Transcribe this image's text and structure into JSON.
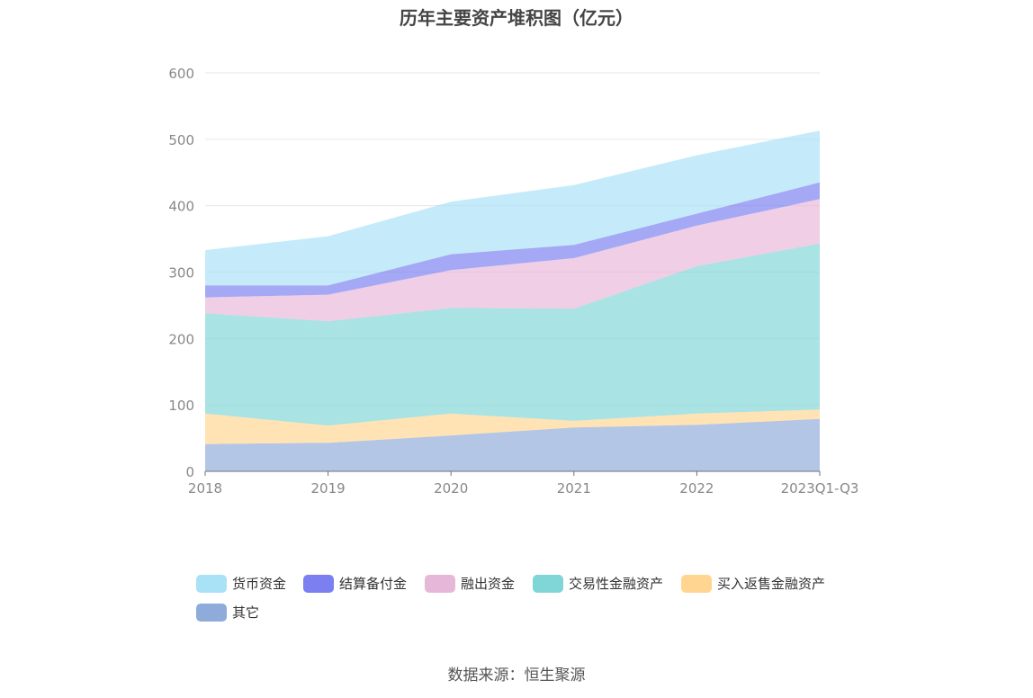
{
  "chart_data": {
    "type": "area",
    "stacked": true,
    "title": "历年主要资产堆积图（亿元）",
    "categories": [
      "2018",
      "2019",
      "2020",
      "2021",
      "2022",
      "2023Q1-Q3"
    ],
    "ylim": [
      0,
      600
    ],
    "yticks": [
      0,
      100,
      200,
      300,
      400,
      500,
      600
    ],
    "grid": true,
    "series": [
      {
        "name": "其它",
        "color": "#8fabd9",
        "values": [
          41,
          43,
          54,
          66,
          70,
          79
        ]
      },
      {
        "name": "买入返售金融资产",
        "color": "#ffd591",
        "values": [
          46,
          26,
          33,
          10,
          17,
          14
        ]
      },
      {
        "name": "交易性金融资产",
        "color": "#80d6d6",
        "values": [
          151,
          157,
          159,
          169,
          222,
          250
        ]
      },
      {
        "name": "融出资金",
        "color": "#e7b7da",
        "values": [
          24,
          40,
          57,
          76,
          61,
          67
        ]
      },
      {
        "name": "结算备付金",
        "color": "#7b7ff0",
        "values": [
          18,
          14,
          24,
          20,
          18,
          25
        ]
      },
      {
        "name": "货币资金",
        "color": "#a9e1f7",
        "values": [
          53,
          74,
          79,
          90,
          88,
          78
        ]
      }
    ],
    "legend_order": [
      "货币资金",
      "结算备付金",
      "融出资金",
      "交易性金融资产",
      "买入返售金融资产",
      "其它"
    ],
    "legend_position": "bottom"
  },
  "source": "数据来源：恒生聚源"
}
